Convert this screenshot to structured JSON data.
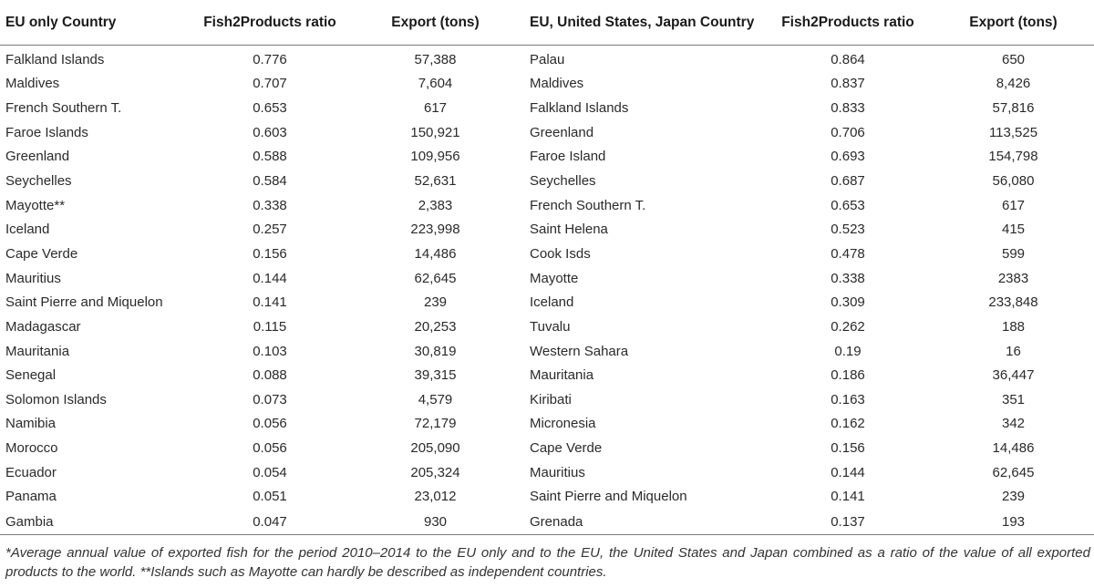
{
  "table": {
    "headers": [
      "EU only Country",
      "Fish2Products ratio",
      "Export (tons)",
      "EU, United States, Japan Country",
      "Fish2Products ratio",
      "Export (tons)"
    ],
    "rows": [
      [
        "Falkland Islands",
        "0.776",
        "57,388",
        "Palau",
        "0.864",
        "650"
      ],
      [
        "Maldives",
        "0.707",
        "7,604",
        "Maldives",
        "0.837",
        "8,426"
      ],
      [
        "French Southern T.",
        "0.653",
        "617",
        "Falkland Islands",
        "0.833",
        "57,816"
      ],
      [
        "Faroe Islands",
        "0.603",
        "150,921",
        "Greenland",
        "0.706",
        "113,525"
      ],
      [
        "Greenland",
        "0.588",
        "109,956",
        "Faroe Island",
        "0.693",
        "154,798"
      ],
      [
        "Seychelles",
        "0.584",
        "52,631",
        "Seychelles",
        "0.687",
        "56,080"
      ],
      [
        "Mayotte**",
        "0.338",
        "2,383",
        "French Southern T.",
        "0.653",
        "617"
      ],
      [
        "Iceland",
        "0.257",
        "223,998",
        "Saint Helena",
        "0.523",
        "415"
      ],
      [
        "Cape Verde",
        "0.156",
        "14,486",
        "Cook Isds",
        "0.478",
        "599"
      ],
      [
        "Mauritius",
        "0.144",
        "62,645",
        "Mayotte",
        "0.338",
        "2383"
      ],
      [
        "Saint Pierre and Miquelon",
        "0.141",
        "239",
        "Iceland",
        "0.309",
        "233,848"
      ],
      [
        "Madagascar",
        "0.115",
        "20,253",
        "Tuvalu",
        "0.262",
        "188"
      ],
      [
        "Mauritania",
        "0.103",
        "30,819",
        "Western Sahara",
        "0.19",
        "16"
      ],
      [
        "Senegal",
        "0.088",
        "39,315",
        "Mauritania",
        "0.186",
        "36,447"
      ],
      [
        "Solomon Islands",
        "0.073",
        "4,579",
        "Kiribati",
        "0.163",
        "351"
      ],
      [
        "Namibia",
        "0.056",
        "72,179",
        "Micronesia",
        "0.162",
        "342"
      ],
      [
        "Morocco",
        "0.056",
        "205,090",
        "Cape Verde",
        "0.156",
        "14,486"
      ],
      [
        "Ecuador",
        "0.054",
        "205,324",
        "Mauritius",
        "0.144",
        "62,645"
      ],
      [
        "Panama",
        "0.051",
        "23,012",
        "Saint Pierre and Miquelon",
        "0.141",
        "239"
      ],
      [
        "Gambia",
        "0.047",
        "930",
        "Grenada",
        "0.137",
        "193"
      ]
    ]
  },
  "footnote": "*Average annual value of exported fish for the period 2010–2014 to the EU only and to the EU, the United States and Japan combined as a ratio of the value of all exported products to the world. **Islands such as Mayotte can hardly be described as independent countries."
}
